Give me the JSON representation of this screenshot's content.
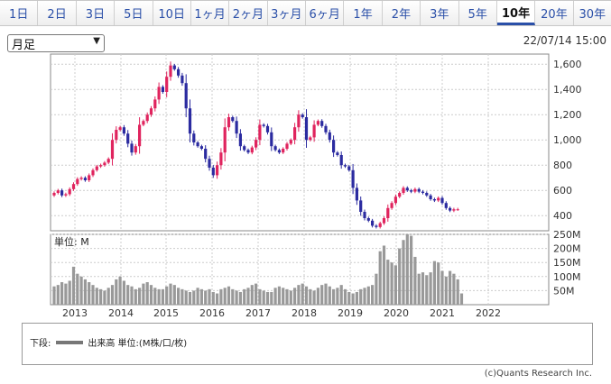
{
  "tabs": [
    {
      "label": "1日",
      "active": false
    },
    {
      "label": "2日",
      "active": false
    },
    {
      "label": "3日",
      "active": false
    },
    {
      "label": "5日",
      "active": false
    },
    {
      "label": "10日",
      "active": false
    },
    {
      "label": "1ヶ月",
      "active": false
    },
    {
      "label": "2ヶ月",
      "active": false
    },
    {
      "label": "3ヶ月",
      "active": false
    },
    {
      "label": "6ヶ月",
      "active": false
    },
    {
      "label": "1年",
      "active": false
    },
    {
      "label": "2年",
      "active": false
    },
    {
      "label": "3年",
      "active": false
    },
    {
      "label": "5年",
      "active": false
    },
    {
      "label": "10年",
      "active": true
    },
    {
      "label": "20年",
      "active": false
    },
    {
      "label": "30年",
      "active": false
    }
  ],
  "period_select": {
    "value": "月足",
    "icon": "chevron-down-icon"
  },
  "timestamp": "22/07/14 15:00",
  "volume_panel": {
    "title": "単位: M"
  },
  "legend": {
    "prefix": "下段:",
    "label": "出来高 単位:(M株/口/枚)"
  },
  "credit": "(c)Quants Research Inc.",
  "colors": {
    "up": "#e0245e",
    "down": "#2b2ba0",
    "volume": "#999999",
    "grid": "#cccccc",
    "border": "#888888"
  },
  "chart_data": [
    {
      "type": "candlestick",
      "interval": "monthly",
      "x_tick_labels": [
        "2013",
        "2014",
        "2015",
        "2016",
        "2017",
        "2018",
        "2019",
        "2020",
        "2021",
        "2022"
      ],
      "y_tick_labels": [
        "400",
        "600",
        "800",
        "1,000",
        "1,200",
        "1,400",
        "1,600"
      ],
      "ylim": [
        280,
        1680
      ],
      "grid": true,
      "closes": [
        580,
        600,
        560,
        570,
        610,
        650,
        690,
        700,
        680,
        720,
        760,
        790,
        800,
        820,
        850,
        1000,
        1080,
        1100,
        1050,
        970,
        900,
        950,
        1120,
        1150,
        1200,
        1250,
        1320,
        1420,
        1380,
        1500,
        1590,
        1560,
        1510,
        1450,
        1250,
        1050,
        980,
        950,
        930,
        850,
        780,
        720,
        800,
        900,
        1100,
        1180,
        1150,
        1050,
        950,
        920,
        900,
        940,
        1000,
        1120,
        1110,
        1060,
        950,
        920,
        900,
        930,
        970,
        1000,
        1100,
        1200,
        1180,
        1000,
        1020,
        1120,
        1150,
        1110,
        1060,
        1000,
        900,
        880,
        800,
        790,
        760,
        620,
        520,
        430,
        380,
        360,
        320,
        310,
        340,
        380,
        460,
        500,
        550,
        580,
        620,
        600,
        590,
        610,
        590,
        580,
        560,
        530,
        520,
        540,
        500,
        460,
        440,
        450,
        450
      ]
    },
    {
      "type": "bar",
      "title": "単位: M",
      "unit": "M",
      "y_tick_labels": [
        "50M",
        "100M",
        "150M",
        "200M",
        "250M"
      ],
      "ylim": [
        0,
        250
      ],
      "grid": true,
      "values": [
        65,
        70,
        80,
        75,
        85,
        135,
        110,
        100,
        90,
        80,
        70,
        60,
        55,
        50,
        60,
        70,
        90,
        100,
        85,
        70,
        65,
        55,
        60,
        75,
        80,
        70,
        60,
        55,
        55,
        65,
        75,
        70,
        60,
        55,
        50,
        45,
        50,
        60,
        55,
        50,
        55,
        45,
        40,
        55,
        60,
        65,
        55,
        50,
        45,
        55,
        60,
        70,
        75,
        55,
        50,
        45,
        45,
        60,
        65,
        60,
        55,
        50,
        60,
        70,
        75,
        65,
        55,
        50,
        60,
        70,
        75,
        65,
        55,
        60,
        70,
        55,
        45,
        40,
        45,
        55,
        60,
        65,
        70,
        110,
        190,
        210,
        160,
        150,
        140,
        200,
        230,
        250,
        245,
        170,
        110,
        115,
        105,
        115,
        155,
        150,
        120,
        100,
        120,
        110,
        90,
        40
      ]
    }
  ]
}
